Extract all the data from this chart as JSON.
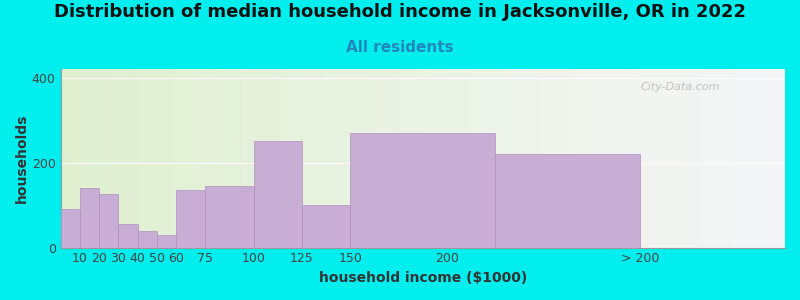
{
  "title": "Distribution of median household income in Jacksonville, OR in 2022",
  "subtitle": "All residents",
  "xlabel": "household income ($1000)",
  "ylabel": "households",
  "background_color": "#00EEEE",
  "bar_color": "#c8aed4",
  "bar_edge_color": "#b090c0",
  "bar_lefts": [
    0,
    10,
    20,
    30,
    40,
    50,
    60,
    75,
    100,
    125,
    150,
    225
  ],
  "bar_widths": [
    10,
    10,
    10,
    10,
    10,
    10,
    15,
    25,
    25,
    25,
    75,
    75
  ],
  "values": [
    90,
    140,
    125,
    55,
    40,
    30,
    135,
    145,
    250,
    100,
    270,
    220
  ],
  "xtick_positions": [
    10,
    20,
    30,
    40,
    50,
    60,
    75,
    100,
    125,
    150,
    200,
    300
  ],
  "xtick_labels": [
    "10",
    "20",
    "30",
    "40",
    "50",
    "60",
    "75",
    "100",
    "125",
    "150",
    "200",
    "> 200"
  ],
  "xlim": [
    0,
    375
  ],
  "ylim": [
    0,
    420
  ],
  "yticks": [
    0,
    200,
    400
  ],
  "watermark": "City-Data.com",
  "title_fontsize": 13,
  "subtitle_fontsize": 11,
  "axis_label_fontsize": 10,
  "tick_fontsize": 9
}
